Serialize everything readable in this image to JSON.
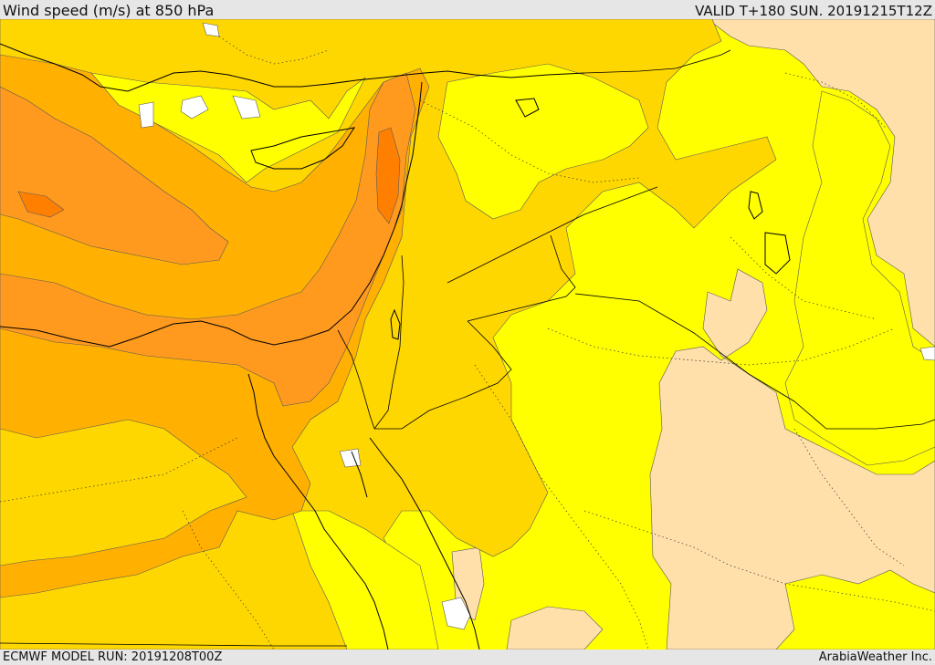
{
  "header": {
    "title": "Wind speed (m/s) at 850 hPa",
    "valid": "VALID T+180 SUN. 20191215T12Z"
  },
  "footer": {
    "model_run": "ECMWF MODEL RUN: 20191208T00Z",
    "credit": "ArabiaWeather Inc."
  },
  "colors": {
    "band_0": "#ffffff",
    "band_1": "#ffdfaa",
    "band_2": "#ffff00",
    "band_3": "#ffd700",
    "band_4": "#ffb000",
    "band_5": "#ff9a1e",
    "band_6": "#ff8000",
    "coast": "#000000",
    "contour": "#5a5a5a",
    "border_dotted": "#333333"
  }
}
